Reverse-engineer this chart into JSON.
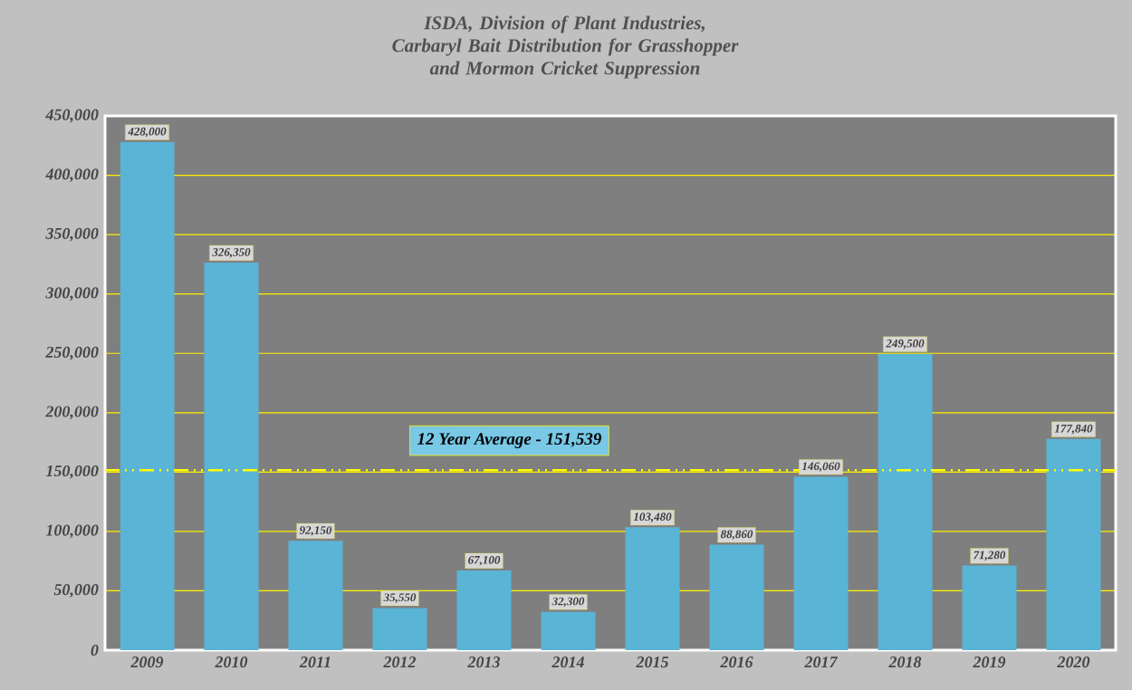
{
  "chart_data": {
    "type": "bar",
    "title": "ISDA, Division of Plant Industries, Carbaryl Bait Distribution  for Grasshopper and Mormon Cricket Suppression",
    "categories": [
      "2009",
      "2010",
      "2011",
      "2012",
      "2013",
      "2014",
      "2015",
      "2016",
      "2017",
      "2018",
      "2019",
      "2020"
    ],
    "values": [
      428000,
      326350,
      92150,
      35550,
      67100,
      32300,
      103480,
      88860,
      146060,
      249500,
      71280,
      177840
    ],
    "value_labels": [
      "428,000",
      "326,350",
      "92,150",
      "35,550",
      "67,100",
      "32,300",
      "103,480",
      "88,860",
      "146,060",
      "249,500",
      "71,280",
      "177,840"
    ],
    "color": "#5ab4d6",
    "ylim": [
      0,
      450000
    ],
    "yticks": [
      0,
      {
        "value": 50000,
        "label": "50,000"
      },
      {
        "value": 100000,
        "label": "100,000"
      },
      {
        "value": 150000,
        "label": "150,000"
      },
      {
        "value": 200000,
        "label": "200,000"
      },
      {
        "value": 250000,
        "label": "250,000"
      },
      {
        "value": 300000,
        "label": "300,000"
      },
      {
        "value": 350000,
        "label": "350,000"
      },
      {
        "value": 400000,
        "label": "400,000"
      },
      {
        "value": 450000,
        "label": "450,000"
      }
    ],
    "grid": "y",
    "ref_lines": [
      {
        "axis": "y",
        "value": 151539,
        "label": "12 Year Average - 151,539",
        "color": "#ffff00",
        "line_style": "dashed"
      }
    ]
  }
}
